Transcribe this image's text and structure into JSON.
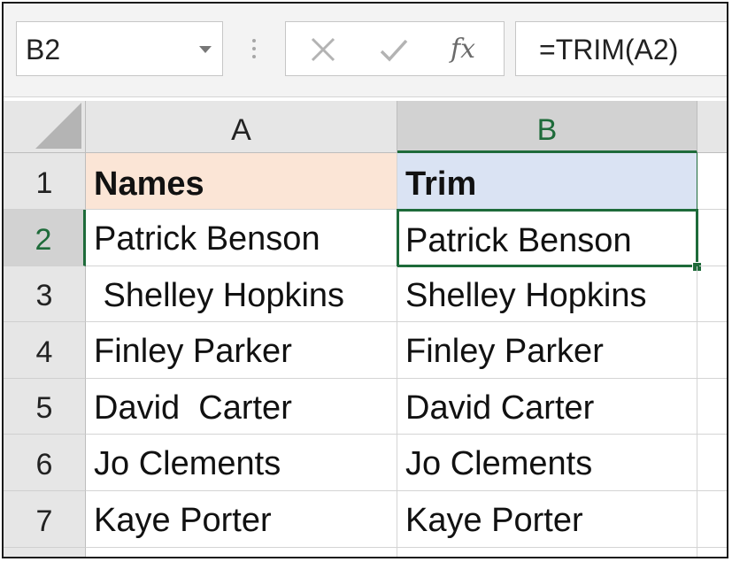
{
  "name_box": {
    "value": "B2"
  },
  "formula_bar": {
    "fx_label": "fx",
    "formula": "=TRIM(A2)"
  },
  "sheet": {
    "columns": [
      "A",
      "B"
    ],
    "rows": [
      {
        "num": "1",
        "a": "Names",
        "b": "Trim"
      },
      {
        "num": "2",
        "a": "Patrick Benson",
        "b": "Patrick Benson"
      },
      {
        "num": "3",
        "a": " Shelley Hopkins",
        "b": "Shelley Hopkins"
      },
      {
        "num": "4",
        "a": "Finley Parker",
        "b": "Finley Parker"
      },
      {
        "num": "5",
        "a": "David  Carter",
        "b": "David Carter"
      },
      {
        "num": "6",
        "a": "Jo Clements",
        "b": "Jo Clements"
      },
      {
        "num": "7",
        "a": "Kaye Porter",
        "b": "Kaye Porter"
      }
    ],
    "active_cell": "B2"
  },
  "colors": {
    "selection": "#1e6b3a",
    "header_a_fill": "#fbe5d6",
    "header_b_fill": "#dae3f3"
  }
}
